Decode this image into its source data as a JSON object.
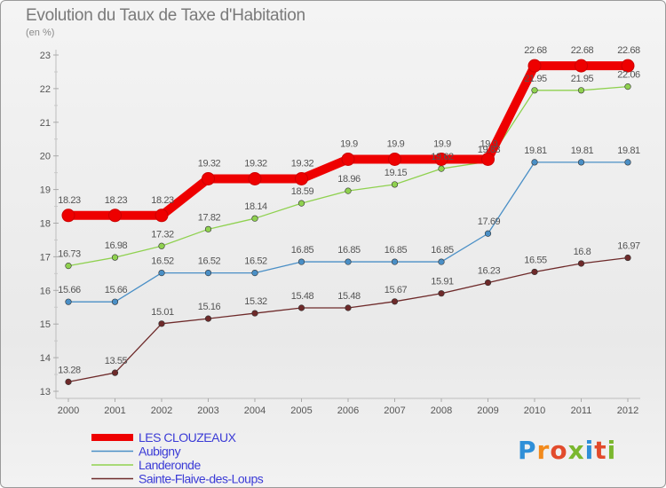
{
  "title": "Evolution du Taux de Taxe d'Habitation",
  "unit": "(en %)",
  "brand": "Proxiti",
  "chart_data": {
    "type": "line",
    "title": "Evolution du Taux de Taxe d'Habitation",
    "ylabel": "(en %)",
    "x": [
      "2000",
      "2001",
      "2002",
      "2003",
      "2004",
      "2005",
      "2006",
      "2007",
      "2008",
      "2009",
      "2010",
      "2011",
      "2012"
    ],
    "ylim": [
      13,
      23
    ],
    "yticks": [
      13,
      14,
      15,
      16,
      17,
      18,
      19,
      20,
      21,
      22,
      23
    ],
    "grid": false,
    "legend": "bottom-left",
    "series": [
      {
        "name": "LES CLOUZEAUX",
        "color": "#ee0000",
        "highlight": true,
        "values": [
          18.23,
          18.23,
          18.23,
          19.32,
          19.32,
          19.32,
          19.9,
          19.9,
          19.9,
          19.9,
          22.68,
          22.68,
          22.68
        ],
        "labels": [
          "18.23",
          "18.23",
          "18.23",
          "19.32",
          "19.32",
          "19.32",
          "19.9",
          "19.9",
          "19.9",
          "19.9",
          "22.68",
          "22.68",
          "22.68"
        ]
      },
      {
        "name": "Aubigny",
        "color": "#4a8fc6",
        "highlight": false,
        "values": [
          15.66,
          15.66,
          16.52,
          16.52,
          16.52,
          16.85,
          16.85,
          16.85,
          16.85,
          17.69,
          19.81,
          19.81,
          19.81
        ],
        "labels": [
          "15.66",
          "15.66",
          "16.52",
          "16.52",
          "16.52",
          "16.85",
          "16.85",
          "16.85",
          "16.85",
          "17.69",
          "19.81",
          "19.81",
          "19.81"
        ]
      },
      {
        "name": "Landeronde",
        "color": "#8fd14f",
        "highlight": false,
        "values": [
          16.73,
          16.98,
          17.32,
          17.82,
          18.14,
          18.59,
          18.96,
          19.15,
          19.62,
          19.83,
          21.95,
          21.95,
          22.06
        ],
        "labels": [
          "16.73",
          "16.98",
          "17.32",
          "17.82",
          "18.14",
          "18.59",
          "18.96",
          "19.15",
          "19.62",
          "19.83",
          "21.95",
          "21.95",
          "22.06"
        ]
      },
      {
        "name": "Sainte-Flaive-des-Loups",
        "color": "#6e2a2a",
        "highlight": false,
        "values": [
          13.28,
          13.55,
          15.01,
          15.16,
          15.32,
          15.48,
          15.48,
          15.67,
          15.91,
          16.23,
          16.55,
          16.8,
          16.97
        ],
        "labels": [
          "13.28",
          "13.55",
          "15.01",
          "15.16",
          "15.32",
          "15.48",
          "15.48",
          "15.67",
          "15.91",
          "16.23",
          "16.55",
          "16.8",
          "16.97"
        ]
      }
    ]
  }
}
